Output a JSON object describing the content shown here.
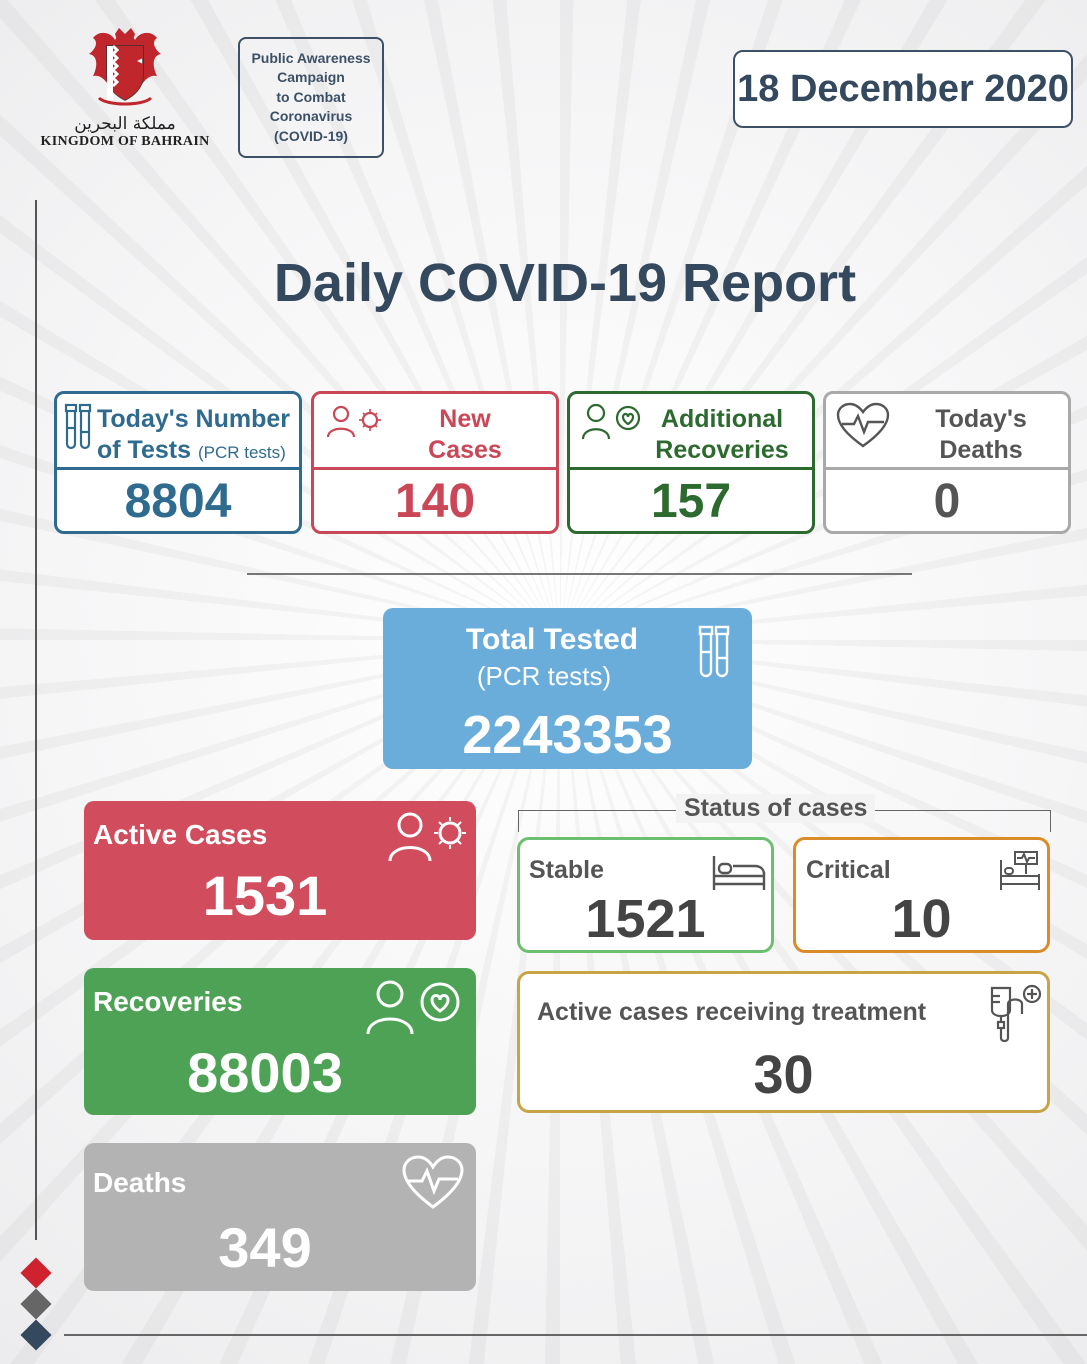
{
  "header": {
    "emblem_ar": "مملكة البحرين",
    "emblem_en": "KINGDOM OF BAHRAIN",
    "campaign_lines": [
      "Public Awareness",
      "Campaign",
      "to Combat",
      "Coronavirus",
      "(COVID-19)"
    ],
    "date": "18 December 2020"
  },
  "title": "Daily COVID-19 Report",
  "daily": {
    "tests": {
      "line1": "Today's Number",
      "line2": "of Tests",
      "sub": "(PCR tests)",
      "value": "8804",
      "color": "#2f6b8f"
    },
    "new_cases": {
      "line1": "New",
      "line2": "Cases",
      "value": "140",
      "color": "#c94756"
    },
    "recoveries": {
      "line1": "Additional",
      "line2": "Recoveries",
      "value": "157",
      "color": "#2d6a2f"
    },
    "deaths": {
      "line1": "Today's",
      "line2": "Deaths",
      "value": "0",
      "color": "#555555"
    }
  },
  "total_tested": {
    "label": "Total Tested",
    "sub": "(PCR tests)",
    "value": "2243353",
    "color": "#6aaddb"
  },
  "summary": {
    "active": {
      "label": "Active Cases",
      "value": "1531",
      "color": "#d14c5c"
    },
    "recoveries": {
      "label": "Recoveries",
      "value": "88003",
      "color": "#4ea255"
    },
    "deaths": {
      "label": "Deaths",
      "value": "349",
      "color": "#b3b3b3"
    }
  },
  "status": {
    "title": "Status of cases",
    "stable": {
      "label": "Stable",
      "value": "1521",
      "color": "#6cbf6f"
    },
    "critical": {
      "label": "Critical",
      "value": "10",
      "color": "#d98c27"
    },
    "treatment": {
      "label": "Active cases receiving treatment",
      "value": "30",
      "color": "#c9a447"
    }
  },
  "icons": {
    "emblem": "bahrain-emblem-icon",
    "tests": "test-tubes-icon",
    "new_cases": "person-virus-icon",
    "recoveries": "person-heart-icon",
    "deaths": "heart-pulse-icon",
    "stable": "bed-icon",
    "critical": "hospital-bed-monitor-icon",
    "treatment": "iv-drip-icon"
  }
}
